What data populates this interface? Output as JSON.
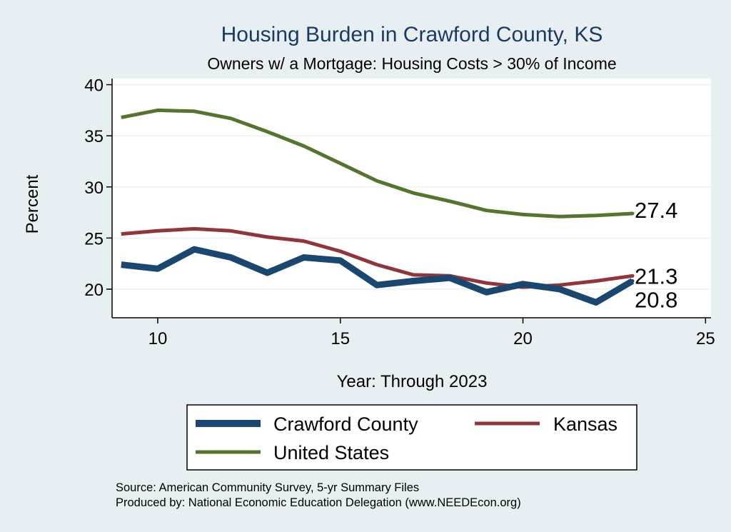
{
  "chart_data": {
    "type": "line",
    "title": "Housing Burden in Crawford County, KS",
    "subtitle": "Owners w/ a Mortgage: Housing Costs > 30% of Income",
    "xlabel": "Year: Through 2023",
    "ylabel": "Percent",
    "xlim": [
      8.75,
      25.15
    ],
    "ylim": [
      17.2,
      40.6
    ],
    "xticks": [
      10,
      15,
      20,
      25
    ],
    "yticks": [
      20,
      25,
      30,
      35,
      40
    ],
    "grid": true,
    "x": [
      9,
      10,
      11,
      12,
      13,
      14,
      15,
      16,
      17,
      18,
      19,
      20,
      21,
      22,
      23
    ],
    "series": [
      {
        "name": "Crawford County",
        "color": "#1a476f",
        "values": [
          22.4,
          22.0,
          23.9,
          23.1,
          21.6,
          23.1,
          22.8,
          20.4,
          20.8,
          21.1,
          19.7,
          20.5,
          20.0,
          18.7,
          20.8
        ],
        "end_label": "20.8"
      },
      {
        "name": "Kansas",
        "color": "#90353b",
        "values": [
          25.4,
          25.7,
          25.9,
          25.7,
          25.1,
          24.7,
          23.7,
          22.4,
          21.4,
          21.3,
          20.6,
          20.2,
          20.4,
          20.8,
          21.3
        ],
        "end_label": "21.3"
      },
      {
        "name": "United States",
        "color": "#55752f",
        "values": [
          36.8,
          37.5,
          37.4,
          36.7,
          35.4,
          34.0,
          32.3,
          30.6,
          29.4,
          28.6,
          27.7,
          27.3,
          27.1,
          27.2,
          27.4
        ],
        "end_label": "27.4"
      }
    ],
    "legend_position": "bottom",
    "notes": [
      "Source: American Community Survey, 5-yr Summary Files",
      "Produced by: National Economic Education Delegation (www.NEEDEcon.org)"
    ]
  }
}
